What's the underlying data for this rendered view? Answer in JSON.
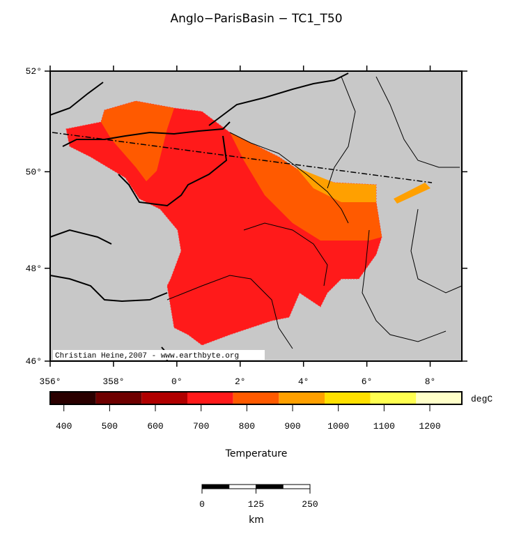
{
  "title": "Anglo−ParisBasin − TC1_T50",
  "map": {
    "lonlim": [
      356,
      369
    ],
    "latlim": [
      46,
      52
    ],
    "lon_ticks": [
      {
        "value": 356,
        "label": "356°"
      },
      {
        "value": 358,
        "label": "358°"
      },
      {
        "value": 360,
        "label": "0°"
      },
      {
        "value": 362,
        "label": "2°"
      },
      {
        "value": 364,
        "label": "4°"
      },
      {
        "value": 366,
        "label": "6°"
      },
      {
        "value": 368,
        "label": "8°"
      }
    ],
    "lat_ticks": [
      {
        "value": 46,
        "label": "46°"
      },
      {
        "value": 48,
        "label": "48°"
      },
      {
        "value": 50,
        "label": "50°"
      },
      {
        "value": 52,
        "label": "52°"
      }
    ],
    "credit": "Christian Heine,2007 - www.earthbyte.org"
  },
  "colorbar": {
    "lim": [
      370,
      1270
    ],
    "colors": [
      "#2a0000",
      "#6e0000",
      "#b00000",
      "#ff1a1a",
      "#ff5a00",
      "#ffa000",
      "#ffe000",
      "#ffff50",
      "#ffffc8"
    ],
    "ticks": [
      400,
      500,
      600,
      700,
      800,
      900,
      1000,
      1100,
      1200
    ],
    "unit": "degC",
    "label": "Temperature"
  },
  "scalebar": {
    "ticks": [
      0,
      125,
      250
    ],
    "unit": "km"
  }
}
